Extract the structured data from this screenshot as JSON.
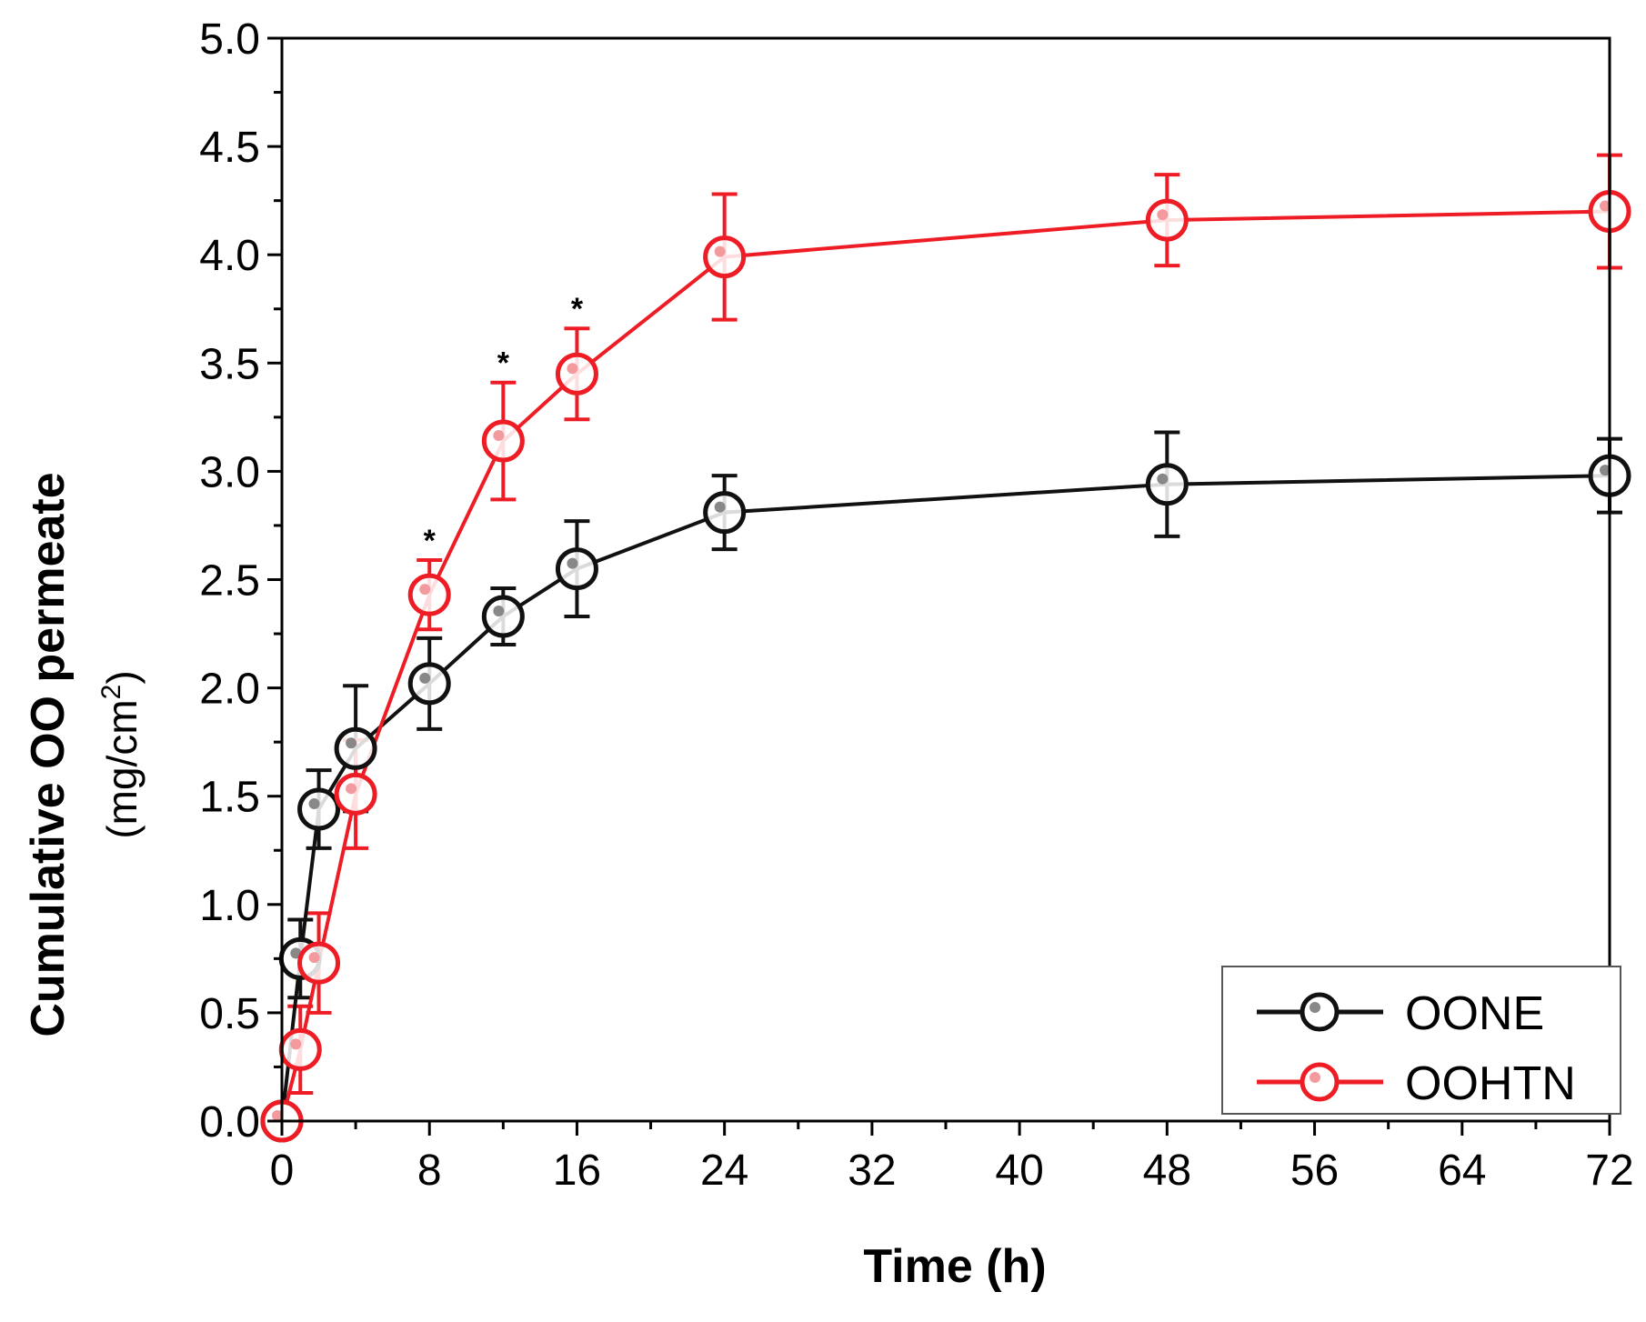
{
  "chart_data": {
    "type": "line",
    "xlabel": "Time (h)",
    "ylabel": "Cumulative OO permeate",
    "ylabel_unit_prefix": "(mg/cm",
    "ylabel_unit_sup": "2",
    "ylabel_unit_suffix": ")",
    "xlim": [
      0,
      72
    ],
    "ylim": [
      0,
      5
    ],
    "xticks": [
      0,
      8,
      16,
      24,
      32,
      40,
      48,
      56,
      64,
      72
    ],
    "xtick_labels": [
      "0",
      "8",
      "16",
      "24",
      "32",
      "40",
      "48",
      "56",
      "64",
      "72"
    ],
    "yticks": [
      0,
      0.5,
      1,
      1.5,
      2,
      2.5,
      3,
      3.5,
      4,
      4.5,
      5
    ],
    "ytick_labels": [
      "0.0",
      "0.5",
      "1.0",
      "1.5",
      "2.0",
      "2.5",
      "3.0",
      "3.5",
      "4.0",
      "4.5",
      "5.0"
    ],
    "legend_position": "bottom-right",
    "significance_marker": "*",
    "significance_x": [
      8,
      12,
      16
    ],
    "series": [
      {
        "name": "OONE",
        "color": "#111111",
        "x": [
          0,
          1,
          2,
          4,
          8,
          12,
          16,
          24,
          48,
          72
        ],
        "y": [
          0.0,
          0.75,
          1.44,
          1.72,
          2.02,
          2.33,
          2.55,
          2.81,
          2.94,
          2.98
        ],
        "err": [
          0.0,
          0.18,
          0.18,
          0.29,
          0.21,
          0.13,
          0.22,
          0.17,
          0.24,
          0.17
        ]
      },
      {
        "name": "OOHTN",
        "color": "#ee1c24",
        "x": [
          0,
          1,
          2,
          4,
          8,
          12,
          16,
          24,
          48,
          72
        ],
        "y": [
          0.0,
          0.33,
          0.73,
          1.51,
          2.43,
          3.14,
          3.45,
          3.99,
          4.16,
          4.2
        ],
        "err": [
          0.0,
          0.2,
          0.23,
          0.25,
          0.16,
          0.27,
          0.21,
          0.29,
          0.21,
          0.26
        ]
      }
    ]
  }
}
